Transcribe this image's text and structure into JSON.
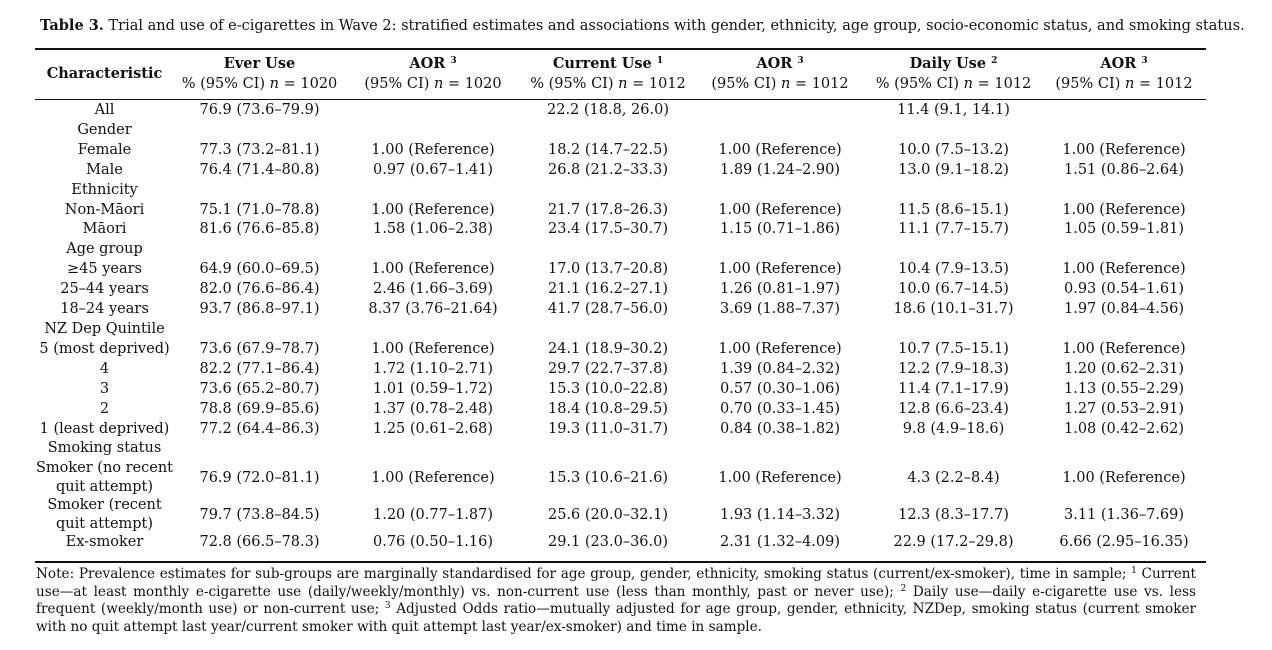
{
  "caption": {
    "label": "Table 3.",
    "text": "Trial and use of e-cigarettes in Wave 2: stratified estimates and associations with gender, ethnicity, age group, socio-economic status, and smoking status."
  },
  "headers": [
    {
      "title": "Characteristic",
      "title_sup": "",
      "sub": ""
    },
    {
      "title": "Ever Use",
      "title_sup": "",
      "sub": "% (95% CI) n = 1020"
    },
    {
      "title": "AOR",
      "title_sup": "3",
      "sub": "(95% CI) n = 1020"
    },
    {
      "title": "Current Use",
      "title_sup": "1",
      "sub": "% (95% CI) n = 1012"
    },
    {
      "title": "AOR",
      "title_sup": "3",
      "sub": "(95% CI) n = 1012"
    },
    {
      "title": "Daily Use",
      "title_sup": "2",
      "sub": "% (95% CI) n = 1012"
    },
    {
      "title": "AOR",
      "title_sup": "3",
      "sub": "(95% CI) n = 1012"
    }
  ],
  "rows": [
    [
      "All",
      "76.9 (73.6–79.9)",
      "",
      "22.2 (18.8, 26.0)",
      "",
      "11.4 (9.1, 14.1)",
      ""
    ],
    [
      "Gender",
      "",
      "",
      "",
      "",
      "",
      ""
    ],
    [
      "Female",
      "77.3 (73.2–81.1)",
      "1.00 (Reference)",
      "18.2 (14.7–22.5)",
      "1.00 (Reference)",
      "10.0 (7.5–13.2)",
      "1.00 (Reference)"
    ],
    [
      "Male",
      "76.4 (71.4–80.8)",
      "0.97 (0.67–1.41)",
      "26.8 (21.2–33.3)",
      "1.89 (1.24–2.90)",
      "13.0 (9.1–18.2)",
      "1.51 (0.86–2.64)"
    ],
    [
      "Ethnicity",
      "",
      "",
      "",
      "",
      "",
      ""
    ],
    [
      "Non-Māori",
      "75.1 (71.0–78.8)",
      "1.00 (Reference)",
      "21.7 (17.8–26.3)",
      "1.00 (Reference)",
      "11.5 (8.6–15.1)",
      "1.00 (Reference)"
    ],
    [
      "Māori",
      "81.6 (76.6–85.8)",
      "1.58 (1.06–2.38)",
      "23.4 (17.5–30.7)",
      "1.15 (0.71–1.86)",
      "11.1 (7.7–15.7)",
      "1.05 (0.59–1.81)"
    ],
    [
      "Age group",
      "",
      "",
      "",
      "",
      "",
      ""
    ],
    [
      "≥45 years",
      "64.9 (60.0–69.5)",
      "1.00 (Reference)",
      "17.0 (13.7–20.8)",
      "1.00 (Reference)",
      "10.4 (7.9–13.5)",
      "1.00 (Reference)"
    ],
    [
      "25–44 years",
      "82.0 (76.6–86.4)",
      "2.46 (1.66–3.69)",
      "21.1 (16.2–27.1)",
      "1.26 (0.81–1.97)",
      "10.0 (6.7–14.5)",
      "0.93 (0.54–1.61)"
    ],
    [
      "18–24 years",
      "93.7 (86.8–97.1)",
      "8.37 (3.76–21.64)",
      "41.7 (28.7–56.0)",
      "3.69 (1.88–7.37)",
      "18.6 (10.1–31.7)",
      "1.97 (0.84–4.56)"
    ],
    [
      "NZ Dep Quintile",
      "",
      "",
      "",
      "",
      "",
      ""
    ],
    [
      "5 (most deprived)",
      "73.6 (67.9–78.7)",
      "1.00 (Reference)",
      "24.1 (18.9–30.2)",
      "1.00 (Reference)",
      "10.7 (7.5–15.1)",
      "1.00 (Reference)"
    ],
    [
      "4",
      "82.2 (77.1–86.4)",
      "1.72 (1.10–2.71)",
      "29.7 (22.7–37.8)",
      "1.39 (0.84–2.32)",
      "12.2 (7.9–18.3)",
      "1.20 (0.62–2.31)"
    ],
    [
      "3",
      "73.6 (65.2–80.7)",
      "1.01 (0.59–1.72)",
      "15.3 (10.0–22.8)",
      "0.57 (0.30–1.06)",
      "11.4 (7.1–17.9)",
      "1.13 (0.55–2.29)"
    ],
    [
      "2",
      "78.8 (69.9–85.6)",
      "1.37 (0.78–2.48)",
      "18.4 (10.8–29.5)",
      "0.70 (0.33–1.45)",
      "12.8 (6.6–23.4)",
      "1.27 (0.53–2.91)"
    ],
    [
      "1 (least deprived)",
      "77.2 (64.4–86.3)",
      "1.25 (0.61–2.68)",
      "19.3 (11.0–31.7)",
      "0.84 (0.38–1.82)",
      "9.8 (4.9–18.6)",
      "1.08 (0.42–2.62)"
    ],
    [
      "Smoking status",
      "",
      "",
      "",
      "",
      "",
      ""
    ],
    [
      "Smoker (no recent quit attempt)",
      "76.9 (72.0–81.1)",
      "1.00 (Reference)",
      "15.3 (10.6–21.6)",
      "1.00 (Reference)",
      "4.3 (2.2–8.4)",
      "1.00 (Reference)"
    ],
    [
      "Smoker (recent quit attempt)",
      "79.7 (73.8–84.5)",
      "1.20 (0.77–1.87)",
      "25.6 (20.0–32.1)",
      "1.93 (1.14–3.32)",
      "12.3 (8.3–17.7)",
      "3.11 (1.36–7.69)"
    ],
    [
      "Ex-smoker",
      "72.8 (66.5–78.3)",
      "0.76 (0.50–1.16)",
      "29.1 (23.0–36.0)",
      "2.31 (1.32–4.09)",
      "22.9 (17.2–29.8)",
      "6.66 (2.95–16.35)"
    ]
  ],
  "note": {
    "p1": "Note: Prevalence estimates for sub-groups are marginally standardised for age group, gender, ethnicity, smoking status (current/ex-smoker), time in sample; ",
    "s1": "1",
    "p2": " Current use—at least monthly e-cigarette use (daily/weekly/monthly) vs. non-current use (less than monthly, past or never use); ",
    "s2": "2",
    "p3": " Daily use—daily e-cigarette use vs. less frequent (weekly/month use) or non-current use; ",
    "s3": "3",
    "p4": " Adjusted Odds ratio—mutually adjusted for age group, gender, ethnicity, NZDep, smoking status (current smoker with no quit attempt last year/current smoker with quit attempt last year/ex-smoker) and time in sample."
  }
}
